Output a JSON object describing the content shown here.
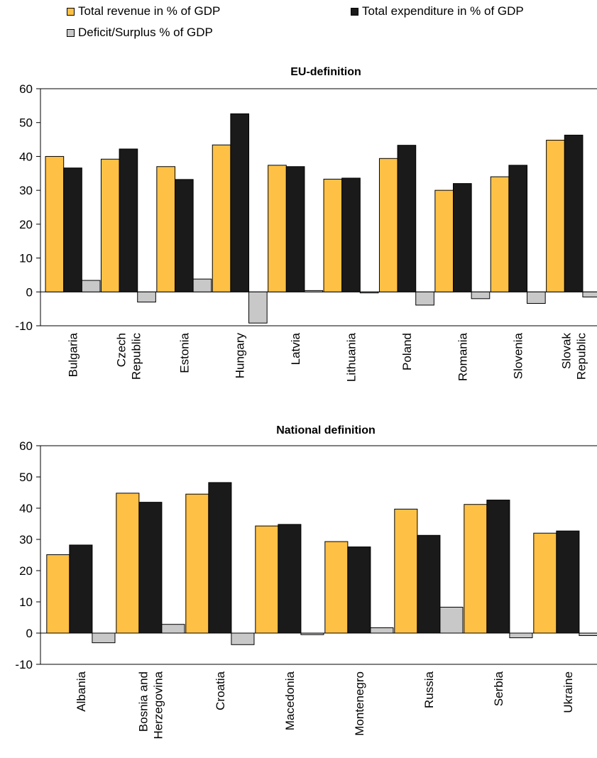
{
  "legend": {
    "revenue_label": "Total revenue in % of GDP",
    "expenditure_label": "Total expenditure in % of GDP",
    "deficit_label": "Deficit/Surplus % of GDP"
  },
  "colors": {
    "revenue": "#FFC145",
    "expenditure": "#1a1a1a",
    "deficit": "#C8C8C8"
  },
  "chart_data": [
    {
      "type": "bar",
      "title": "EU-definition",
      "xlabel": "",
      "ylabel": "",
      "ylim": [
        -10,
        60
      ],
      "yticks": [
        -10,
        0,
        10,
        20,
        30,
        40,
        50,
        60
      ],
      "grid": false,
      "legend_position": "top",
      "categories": [
        [
          "Bulgaria"
        ],
        [
          "Czech",
          "Republic"
        ],
        [
          "Estonia"
        ],
        [
          "Hungary"
        ],
        [
          "Latvia"
        ],
        [
          "Lithuania"
        ],
        [
          "Poland"
        ],
        [
          "Romania"
        ],
        [
          "Slovenia"
        ],
        [
          "Slovak",
          "Republic"
        ]
      ],
      "series": [
        {
          "name": "Total revenue in % of GDP",
          "values": [
            40.0,
            39.2,
            37.0,
            43.4,
            37.4,
            33.3,
            39.4,
            30.0,
            34.0,
            44.8
          ]
        },
        {
          "name": "Total expenditure in % of GDP",
          "values": [
            36.6,
            42.2,
            33.2,
            52.6,
            37.0,
            33.6,
            43.3,
            32.0,
            37.4,
            46.3
          ]
        },
        {
          "name": "Deficit/Surplus % of GDP",
          "values": [
            3.4,
            -3.0,
            3.8,
            -9.2,
            0.4,
            -0.3,
            -3.9,
            -2.0,
            -3.4,
            -1.5
          ]
        }
      ]
    },
    {
      "type": "bar",
      "title": "National definition",
      "xlabel": "",
      "ylabel": "",
      "ylim": [
        -10,
        60
      ],
      "yticks": [
        -10,
        0,
        10,
        20,
        30,
        40,
        50,
        60
      ],
      "grid": false,
      "legend_position": "top",
      "categories": [
        [
          "Albania"
        ],
        [
          "Bosnia and",
          "Herzegovina"
        ],
        [
          "Croatia"
        ],
        [
          "Macedonia"
        ],
        [
          "Montenegro"
        ],
        [
          "Russia"
        ],
        [
          "Serbia"
        ],
        [
          "Ukraine"
        ]
      ],
      "series": [
        {
          "name": "Total revenue in % of GDP",
          "values": [
            25.1,
            44.8,
            44.5,
            34.3,
            29.3,
            39.7,
            41.2,
            32.0
          ]
        },
        {
          "name": "Total expenditure in % of GDP",
          "values": [
            28.2,
            41.9,
            48.2,
            34.8,
            27.6,
            31.3,
            42.6,
            32.7
          ]
        },
        {
          "name": "Deficit/Surplus % of GDP",
          "values": [
            -3.1,
            2.8,
            -3.7,
            -0.5,
            1.7,
            8.3,
            -1.5,
            -0.8
          ]
        }
      ]
    }
  ]
}
